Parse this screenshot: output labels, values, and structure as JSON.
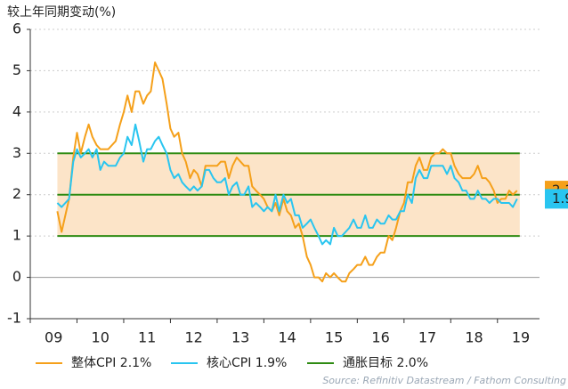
{
  "chart_data": {
    "type": "line",
    "title": "较上年同期变动(%)",
    "source": "Source: Refinitiv Datastream / Fathom Consulting",
    "xlim": [
      2009,
      2019.9
    ],
    "xticks": [
      {
        "value": 2009,
        "label": "09"
      },
      {
        "value": 2010,
        "label": "10"
      },
      {
        "value": 2011,
        "label": "11"
      },
      {
        "value": 2012,
        "label": "12"
      },
      {
        "value": 2013,
        "label": "13"
      },
      {
        "value": 2014,
        "label": "14"
      },
      {
        "value": 2015,
        "label": "15"
      },
      {
        "value": 2016,
        "label": "16"
      },
      {
        "value": 2017,
        "label": "17"
      },
      {
        "value": 2018,
        "label": "18"
      },
      {
        "value": 2019,
        "label": "19"
      }
    ],
    "ylim": [
      -1,
      6
    ],
    "yticks": [
      -1,
      0,
      1,
      2,
      3,
      4,
      5,
      6
    ],
    "grid": true,
    "x": [
      2009.58,
      2009.67,
      2009.75,
      2009.83,
      2009.92,
      2010,
      2010.08,
      2010.17,
      2010.25,
      2010.33,
      2010.42,
      2010.5,
      2010.58,
      2010.67,
      2010.75,
      2010.83,
      2010.92,
      2011,
      2011.08,
      2011.17,
      2011.25,
      2011.33,
      2011.42,
      2011.5,
      2011.58,
      2011.67,
      2011.75,
      2011.83,
      2011.92,
      2012,
      2012.08,
      2012.17,
      2012.25,
      2012.33,
      2012.42,
      2012.5,
      2012.58,
      2012.67,
      2012.75,
      2012.83,
      2012.92,
      2013,
      2013.08,
      2013.17,
      2013.25,
      2013.33,
      2013.42,
      2013.5,
      2013.58,
      2013.67,
      2013.75,
      2013.83,
      2013.92,
      2014,
      2014.08,
      2014.17,
      2014.25,
      2014.33,
      2014.42,
      2014.5,
      2014.58,
      2014.67,
      2014.75,
      2014.83,
      2014.92,
      2015,
      2015.08,
      2015.17,
      2015.25,
      2015.33,
      2015.42,
      2015.5,
      2015.58,
      2015.67,
      2015.75,
      2015.83,
      2015.92,
      2016,
      2016.08,
      2016.17,
      2016.25,
      2016.33,
      2016.42,
      2016.5,
      2016.58,
      2016.67,
      2016.75,
      2016.83,
      2016.92,
      2017,
      2017.08,
      2017.17,
      2017.25,
      2017.33,
      2017.42,
      2017.5,
      2017.58,
      2017.67,
      2017.75,
      2017.83,
      2017.92,
      2018,
      2018.08,
      2018.17,
      2018.25,
      2018.33,
      2018.42,
      2018.5,
      2018.58,
      2018.67,
      2018.75,
      2018.83,
      2018.92,
      2019,
      2019.08,
      2019.17,
      2019.25,
      2019.33,
      2019.42
    ],
    "series": [
      {
        "name": "整体CPI 2.1%",
        "color": "#f5a01a",
        "end_label": "2.1",
        "values": [
          1.6,
          1.1,
          1.5,
          1.9,
          2.9,
          3.5,
          3.0,
          3.4,
          3.7,
          3.4,
          3.2,
          3.1,
          3.1,
          3.1,
          3.2,
          3.3,
          3.7,
          4.0,
          4.4,
          4.0,
          4.5,
          4.5,
          4.2,
          4.4,
          4.5,
          5.2,
          5.0,
          4.8,
          4.2,
          3.6,
          3.4,
          3.5,
          3.0,
          2.8,
          2.4,
          2.6,
          2.5,
          2.2,
          2.7,
          2.7,
          2.7,
          2.7,
          2.8,
          2.8,
          2.4,
          2.7,
          2.9,
          2.8,
          2.7,
          2.7,
          2.2,
          2.1,
          2.0,
          1.9,
          1.7,
          1.6,
          1.8,
          1.5,
          1.9,
          1.6,
          1.5,
          1.2,
          1.3,
          1.0,
          0.5,
          0.3,
          0.0,
          0.0,
          -0.1,
          0.1,
          0.0,
          0.1,
          0.0,
          -0.1,
          -0.1,
          0.1,
          0.2,
          0.3,
          0.3,
          0.5,
          0.3,
          0.3,
          0.5,
          0.6,
          0.6,
          1.0,
          0.9,
          1.2,
          1.6,
          1.8,
          2.3,
          2.3,
          2.7,
          2.9,
          2.6,
          2.6,
          2.9,
          3.0,
          3.0,
          3.1,
          3.0,
          3.0,
          2.7,
          2.5,
          2.4,
          2.4,
          2.4,
          2.5,
          2.7,
          2.4,
          2.4,
          2.3,
          2.1,
          1.8,
          1.9,
          1.9,
          2.1,
          2.0,
          2.1
        ]
      },
      {
        "name": "核心CPI 1.9%",
        "color": "#29c5f0",
        "end_label": "1.9",
        "values": [
          1.8,
          1.7,
          1.8,
          1.9,
          2.8,
          3.1,
          2.9,
          3.0,
          3.1,
          2.9,
          3.1,
          2.6,
          2.8,
          2.7,
          2.7,
          2.7,
          2.9,
          3.0,
          3.4,
          3.2,
          3.7,
          3.3,
          2.8,
          3.1,
          3.1,
          3.3,
          3.4,
          3.2,
          3.0,
          2.6,
          2.4,
          2.5,
          2.3,
          2.2,
          2.1,
          2.2,
          2.1,
          2.2,
          2.6,
          2.6,
          2.4,
          2.3,
          2.3,
          2.4,
          2.0,
          2.2,
          2.3,
          2.0,
          2.0,
          2.2,
          1.7,
          1.8,
          1.7,
          1.6,
          1.7,
          1.6,
          2.0,
          1.6,
          2.0,
          1.8,
          1.9,
          1.5,
          1.5,
          1.2,
          1.3,
          1.4,
          1.2,
          1.0,
          0.8,
          0.9,
          0.8,
          1.2,
          1.0,
          1.0,
          1.1,
          1.2,
          1.4,
          1.2,
          1.2,
          1.5,
          1.2,
          1.2,
          1.4,
          1.3,
          1.3,
          1.5,
          1.4,
          1.4,
          1.6,
          1.6,
          2.0,
          1.8,
          2.4,
          2.6,
          2.4,
          2.4,
          2.7,
          2.7,
          2.7,
          2.7,
          2.5,
          2.7,
          2.4,
          2.3,
          2.1,
          2.1,
          1.9,
          1.9,
          2.1,
          1.9,
          1.9,
          1.8,
          1.9,
          1.9,
          1.8,
          1.8,
          1.8,
          1.7,
          1.9
        ]
      }
    ],
    "target": {
      "name": "通胀目标 2.0%",
      "color": "#2e8b12",
      "value": 2,
      "band": [
        1,
        3
      ],
      "band_color": "#fce4c8"
    }
  }
}
